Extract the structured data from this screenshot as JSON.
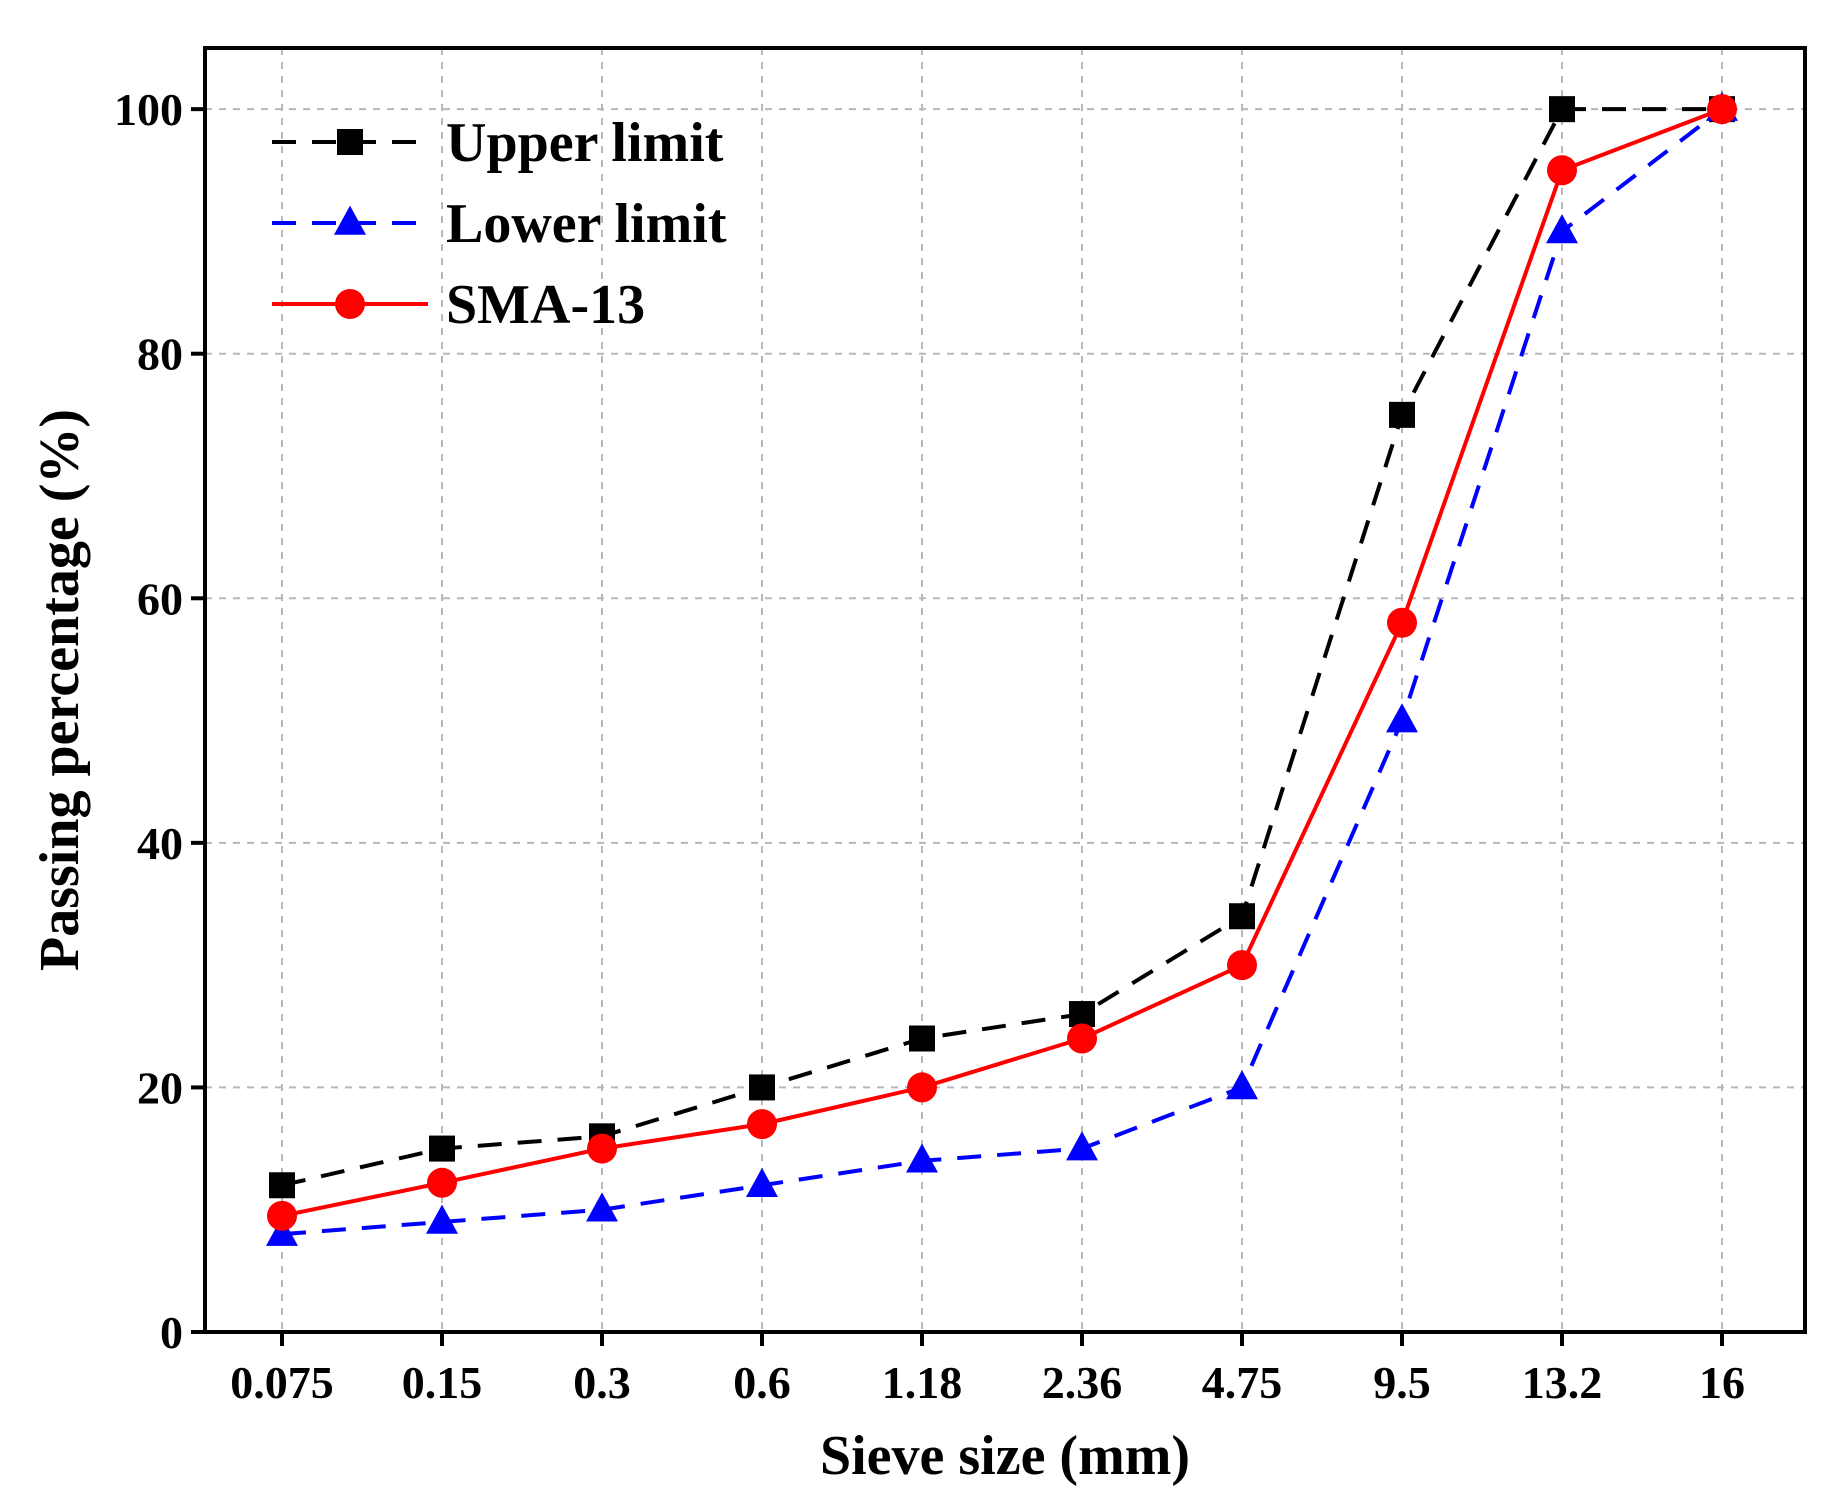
{
  "chart_data": {
    "type": "line",
    "title": "",
    "xlabel": "Sieve size (mm)",
    "ylabel": "Passing percentage (%)",
    "categories": [
      "0.075",
      "0.15",
      "0.3",
      "0.6",
      "1.18",
      "2.36",
      "4.75",
      "9.5",
      "13.2",
      "16"
    ],
    "ylim": [
      0,
      105
    ],
    "yticks": [
      "0",
      "20",
      "40",
      "60",
      "80",
      "100"
    ],
    "grid": true,
    "legend_position": "top-left",
    "series": [
      {
        "name": "Upper limit",
        "color": "#000000",
        "line": "dashed",
        "marker": "square",
        "values": [
          12,
          15,
          16,
          20,
          24,
          26,
          34,
          75,
          100,
          100
        ]
      },
      {
        "name": "Lower limit",
        "color": "#0000ff",
        "line": "dashed",
        "marker": "triangle",
        "values": [
          8,
          9,
          10,
          12,
          14,
          15,
          20,
          50,
          90,
          100
        ]
      },
      {
        "name": "SMA-13",
        "color": "#ff0000",
        "line": "solid",
        "marker": "circle",
        "values": [
          9.5,
          12.2,
          15,
          17,
          20,
          24,
          30,
          58,
          95,
          100
        ]
      }
    ]
  }
}
